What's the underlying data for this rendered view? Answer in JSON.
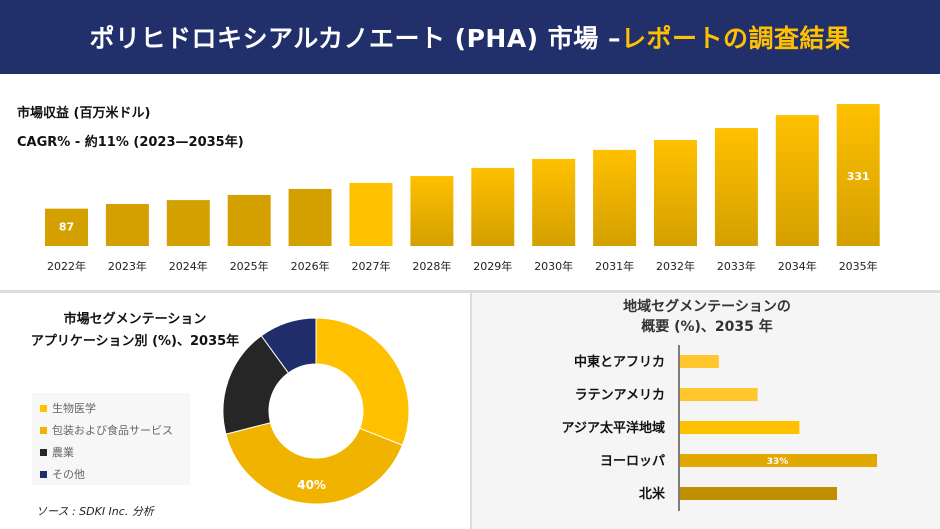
{
  "header": {
    "title_main": "ポリヒドロキシアルカノエート (PHA) 市場 –",
    "title_accent": "レポートの調査結果"
  },
  "top": {
    "label1": "市場収益 (百万米ドル)",
    "label2": "CAGR% - 約11% (2023—2035年)"
  },
  "chart_data": [
    {
      "type": "bar",
      "categories": [
        "2022年",
        "2023年",
        "2024年",
        "2025年",
        "2026年",
        "2027年",
        "2028年",
        "2029年",
        "2030年",
        "2031年",
        "2032年",
        "2033年",
        "2034年",
        "2035年"
      ],
      "values": [
        87,
        98,
        107,
        119,
        133,
        147,
        163,
        182,
        203,
        224,
        247,
        275,
        305,
        331
      ],
      "data_labels": {
        "0": "87",
        "13": "331"
      },
      "grid": false,
      "colors": [
        "#d4a000",
        "#ffc000"
      ]
    },
    {
      "type": "pie",
      "title": "市場セグメンテーション\nアプリケーション別 (%)、2035年",
      "categories": [
        "生物医学",
        "包装および食品サービス",
        "農業",
        "その他"
      ],
      "values": [
        31,
        40,
        19,
        10
      ],
      "data_labels": {
        "1": "40%"
      },
      "colors": [
        "#ffc000",
        "#f0b400",
        "#262626",
        "#1f2d6b"
      ],
      "legend": "left"
    },
    {
      "type": "bar",
      "orientation": "horizontal",
      "title": "地域セグメンテーションの\n概要 (%)、2035 年",
      "categories": [
        "中東とアフリカ",
        "ラテンアメリカ",
        "アジア太平洋地域",
        "ヨーロッパ",
        "北米"
      ],
      "values": [
        6.5,
        13,
        20,
        33,
        26.3
      ],
      "data_labels": {
        "3": "33%"
      },
      "colors": [
        "#ffc72c",
        "#ffc72c",
        "#ffc000",
        "#e0a800",
        "#bf8f00"
      ]
    }
  ],
  "source": "ソース : SDKI Inc. 分析"
}
